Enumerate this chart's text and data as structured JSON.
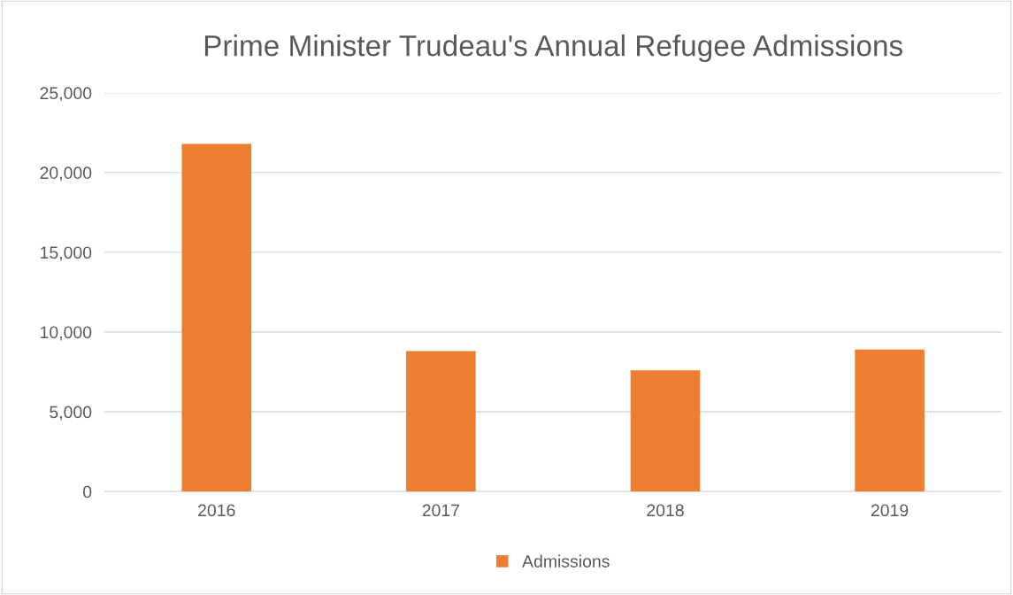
{
  "chart_data": {
    "type": "bar",
    "title": "Prime Minister Trudeau's Annual Refugee Admissions",
    "categories": [
      "2016",
      "2017",
      "2018",
      "2019"
    ],
    "series": [
      {
        "name": "Admissions",
        "color": "#ed7d31",
        "values": [
          21800,
          8800,
          7600,
          8900
        ]
      }
    ],
    "ylim": [
      0,
      25000
    ],
    "yticks": [
      0,
      {
        "value": 5000,
        "label": "5,000"
      },
      {
        "value": 10000,
        "label": "10,000"
      },
      {
        "value": 15000,
        "label": "15,000"
      },
      {
        "value": 20000,
        "label": "20,000"
      },
      {
        "value": 25000,
        "label": "25,000"
      }
    ],
    "grid": "y",
    "legend": "bottom"
  }
}
